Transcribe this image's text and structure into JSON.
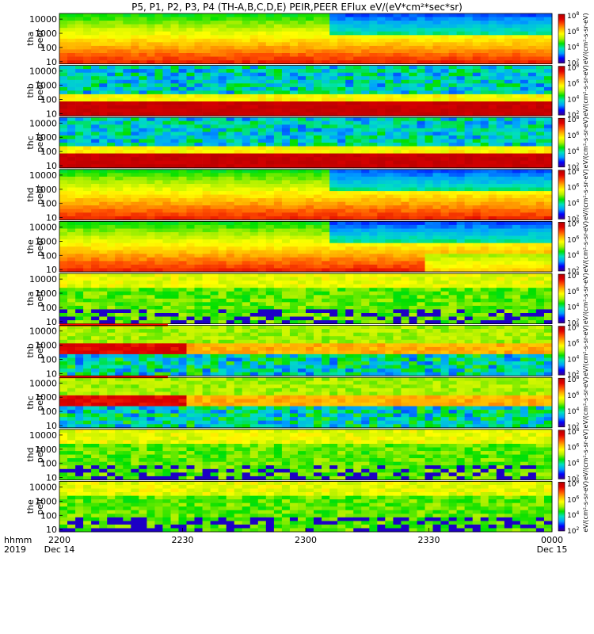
{
  "title": "P5, P1, P2, P3, P4 (TH-A,B,C,D,E) PEIR,PEER EFlux eV/(eV*cm²*sec*sr)",
  "colorbar_label": "eV/(cm²-s-sr-eV)",
  "colors": {
    "colorbar_stops": [
      "#3a008a",
      "#0000ff",
      "#00a0ff",
      "#00e0c0",
      "#00e000",
      "#b0f000",
      "#ffff00",
      "#ffb000",
      "#ff5000",
      "#e00000",
      "#b00000"
    ],
    "flag_bar": "#ff0000"
  },
  "time_axis": {
    "row1_label": "hhmm",
    "row2_label": "2019",
    "ticks": [
      {
        "t": 0,
        "label": "2200",
        "date": "Dec 14"
      },
      {
        "t": 30,
        "label": "2230",
        "date": ""
      },
      {
        "t": 60,
        "label": "2300",
        "date": ""
      },
      {
        "t": 90,
        "label": "2330",
        "date": ""
      },
      {
        "t": 120,
        "label": "0000",
        "date": "Dec 15"
      }
    ],
    "range_minutes": [
      0,
      120
    ]
  },
  "chart_data": {
    "type": "heatmap",
    "x_unit": "time (UT)",
    "y_unit": "energy (eV), log scale",
    "panels": [
      {
        "probe": "tha",
        "species": "peer",
        "ylim": [
          7,
          25000
        ],
        "yticks": [
          10,
          100,
          1000,
          10000
        ],
        "cb_min_exp": 2,
        "cb_max_exp": 8,
        "flag_bar": false
      },
      {
        "probe": "thb",
        "species": "peer",
        "ylim": [
          7,
          25000
        ],
        "yticks": [
          10,
          100,
          1000,
          10000
        ],
        "cb_min_exp": 2,
        "cb_max_exp": 8,
        "flag_bar": false
      },
      {
        "probe": "thc",
        "species": "peer",
        "ylim": [
          7,
          25000
        ],
        "yticks": [
          10,
          100,
          1000,
          10000
        ],
        "cb_min_exp": 2,
        "cb_max_exp": 8,
        "flag_bar": false
      },
      {
        "probe": "thd",
        "species": "peer",
        "ylim": [
          7,
          25000
        ],
        "yticks": [
          10,
          100,
          1000,
          10000
        ],
        "cb_min_exp": 2,
        "cb_max_exp": 8,
        "flag_bar": false
      },
      {
        "probe": "the",
        "species": "peer",
        "ylim": [
          7,
          25000
        ],
        "yticks": [
          10,
          100,
          1000,
          10000
        ],
        "cb_min_exp": 2,
        "cb_max_exp": 8,
        "flag_bar": false
      },
      {
        "probe": "tha",
        "species": "peir",
        "ylim": [
          7,
          25000
        ],
        "yticks": [
          10,
          100,
          1000,
          10000
        ],
        "cb_min_exp": 2,
        "cb_max_exp": 8,
        "flag_bar": false
      },
      {
        "probe": "thb",
        "species": "peir",
        "ylim": [
          7,
          25000
        ],
        "yticks": [
          10,
          100,
          1000,
          10000
        ],
        "cb_min_exp": 2,
        "cb_max_exp": 8,
        "flag_bar": true
      },
      {
        "probe": "thc",
        "species": "peir",
        "ylim": [
          7,
          25000
        ],
        "yticks": [
          10,
          100,
          1000,
          10000
        ],
        "cb_min_exp": 2,
        "cb_max_exp": 8,
        "flag_bar": true
      },
      {
        "probe": "thd",
        "species": "peir",
        "ylim": [
          7,
          25000
        ],
        "yticks": [
          10,
          100,
          1000,
          10000
        ],
        "cb_min_exp": 2,
        "cb_max_exp": 8,
        "flag_bar": false
      },
      {
        "probe": "the",
        "species": "peir",
        "ylim": [
          7,
          25000
        ],
        "yticks": [
          10,
          100,
          1000,
          10000
        ],
        "cb_min_exp": 2,
        "cb_max_exp": 8,
        "flag_bar": false
      }
    ]
  }
}
